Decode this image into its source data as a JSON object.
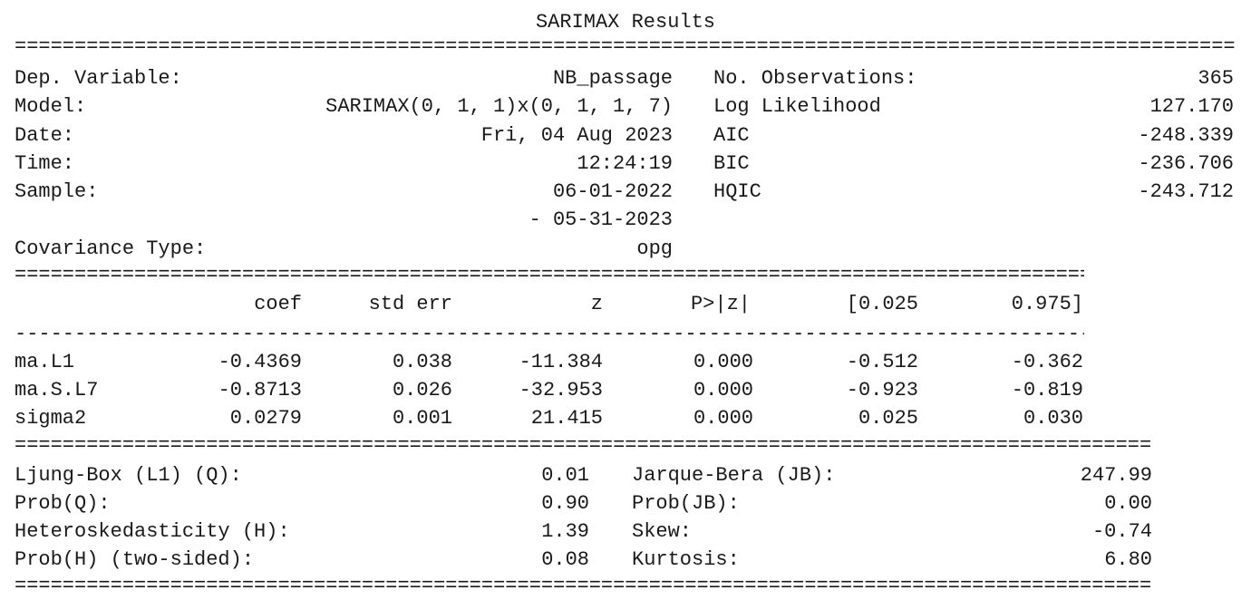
{
  "title": "SARIMAX Results",
  "header": {
    "left": [
      {
        "label": "Dep. Variable:",
        "value": "NB_passage"
      },
      {
        "label": "Model:",
        "value": "SARIMAX(0, 1, 1)x(0, 1, 1, 7)"
      },
      {
        "label": "Date:",
        "value": "Fri, 04 Aug 2023"
      },
      {
        "label": "Time:",
        "value": "12:24:19"
      },
      {
        "label": "Sample:",
        "value": "06-01-2022"
      },
      {
        "label": "",
        "value": "- 05-31-2023"
      },
      {
        "label": "Covariance Type:",
        "value": "opg"
      }
    ],
    "right": [
      {
        "label": "No. Observations:",
        "value": "365"
      },
      {
        "label": "Log Likelihood",
        "value": "127.170"
      },
      {
        "label": "AIC",
        "value": "-248.339"
      },
      {
        "label": "BIC",
        "value": "-236.706"
      },
      {
        "label": "HQIC",
        "value": "-243.712"
      }
    ]
  },
  "coef_table": {
    "columns": [
      "coef",
      "std err",
      "z",
      "P>|z|",
      "[0.025",
      "0.975]"
    ],
    "rows": [
      {
        "name": "ma.L1",
        "values": [
          "-0.4369",
          "0.038",
          "-11.384",
          "0.000",
          "-0.512",
          "-0.362"
        ]
      },
      {
        "name": "ma.S.L7",
        "values": [
          "-0.8713",
          "0.026",
          "-32.953",
          "0.000",
          "-0.923",
          "-0.819"
        ]
      },
      {
        "name": "sigma2",
        "values": [
          "0.0279",
          "0.001",
          "21.415",
          "0.000",
          "0.025",
          "0.030"
        ]
      }
    ]
  },
  "diagnostics": {
    "left": [
      {
        "label": "Ljung-Box (L1) (Q):",
        "value": "0.01"
      },
      {
        "label": "Prob(Q):",
        "value": "0.90"
      },
      {
        "label": "Heteroskedasticity (H):",
        "value": "1.39"
      },
      {
        "label": "Prob(H) (two-sided):",
        "value": "0.08"
      }
    ],
    "right": [
      {
        "label": "Jarque-Bera (JB):",
        "value": "247.99"
      },
      {
        "label": "Prob(JB):",
        "value": "0.00"
      },
      {
        "label": "Skew:",
        "value": "-0.74"
      },
      {
        "label": "Kurtosis:",
        "value": "6.80"
      }
    ]
  }
}
